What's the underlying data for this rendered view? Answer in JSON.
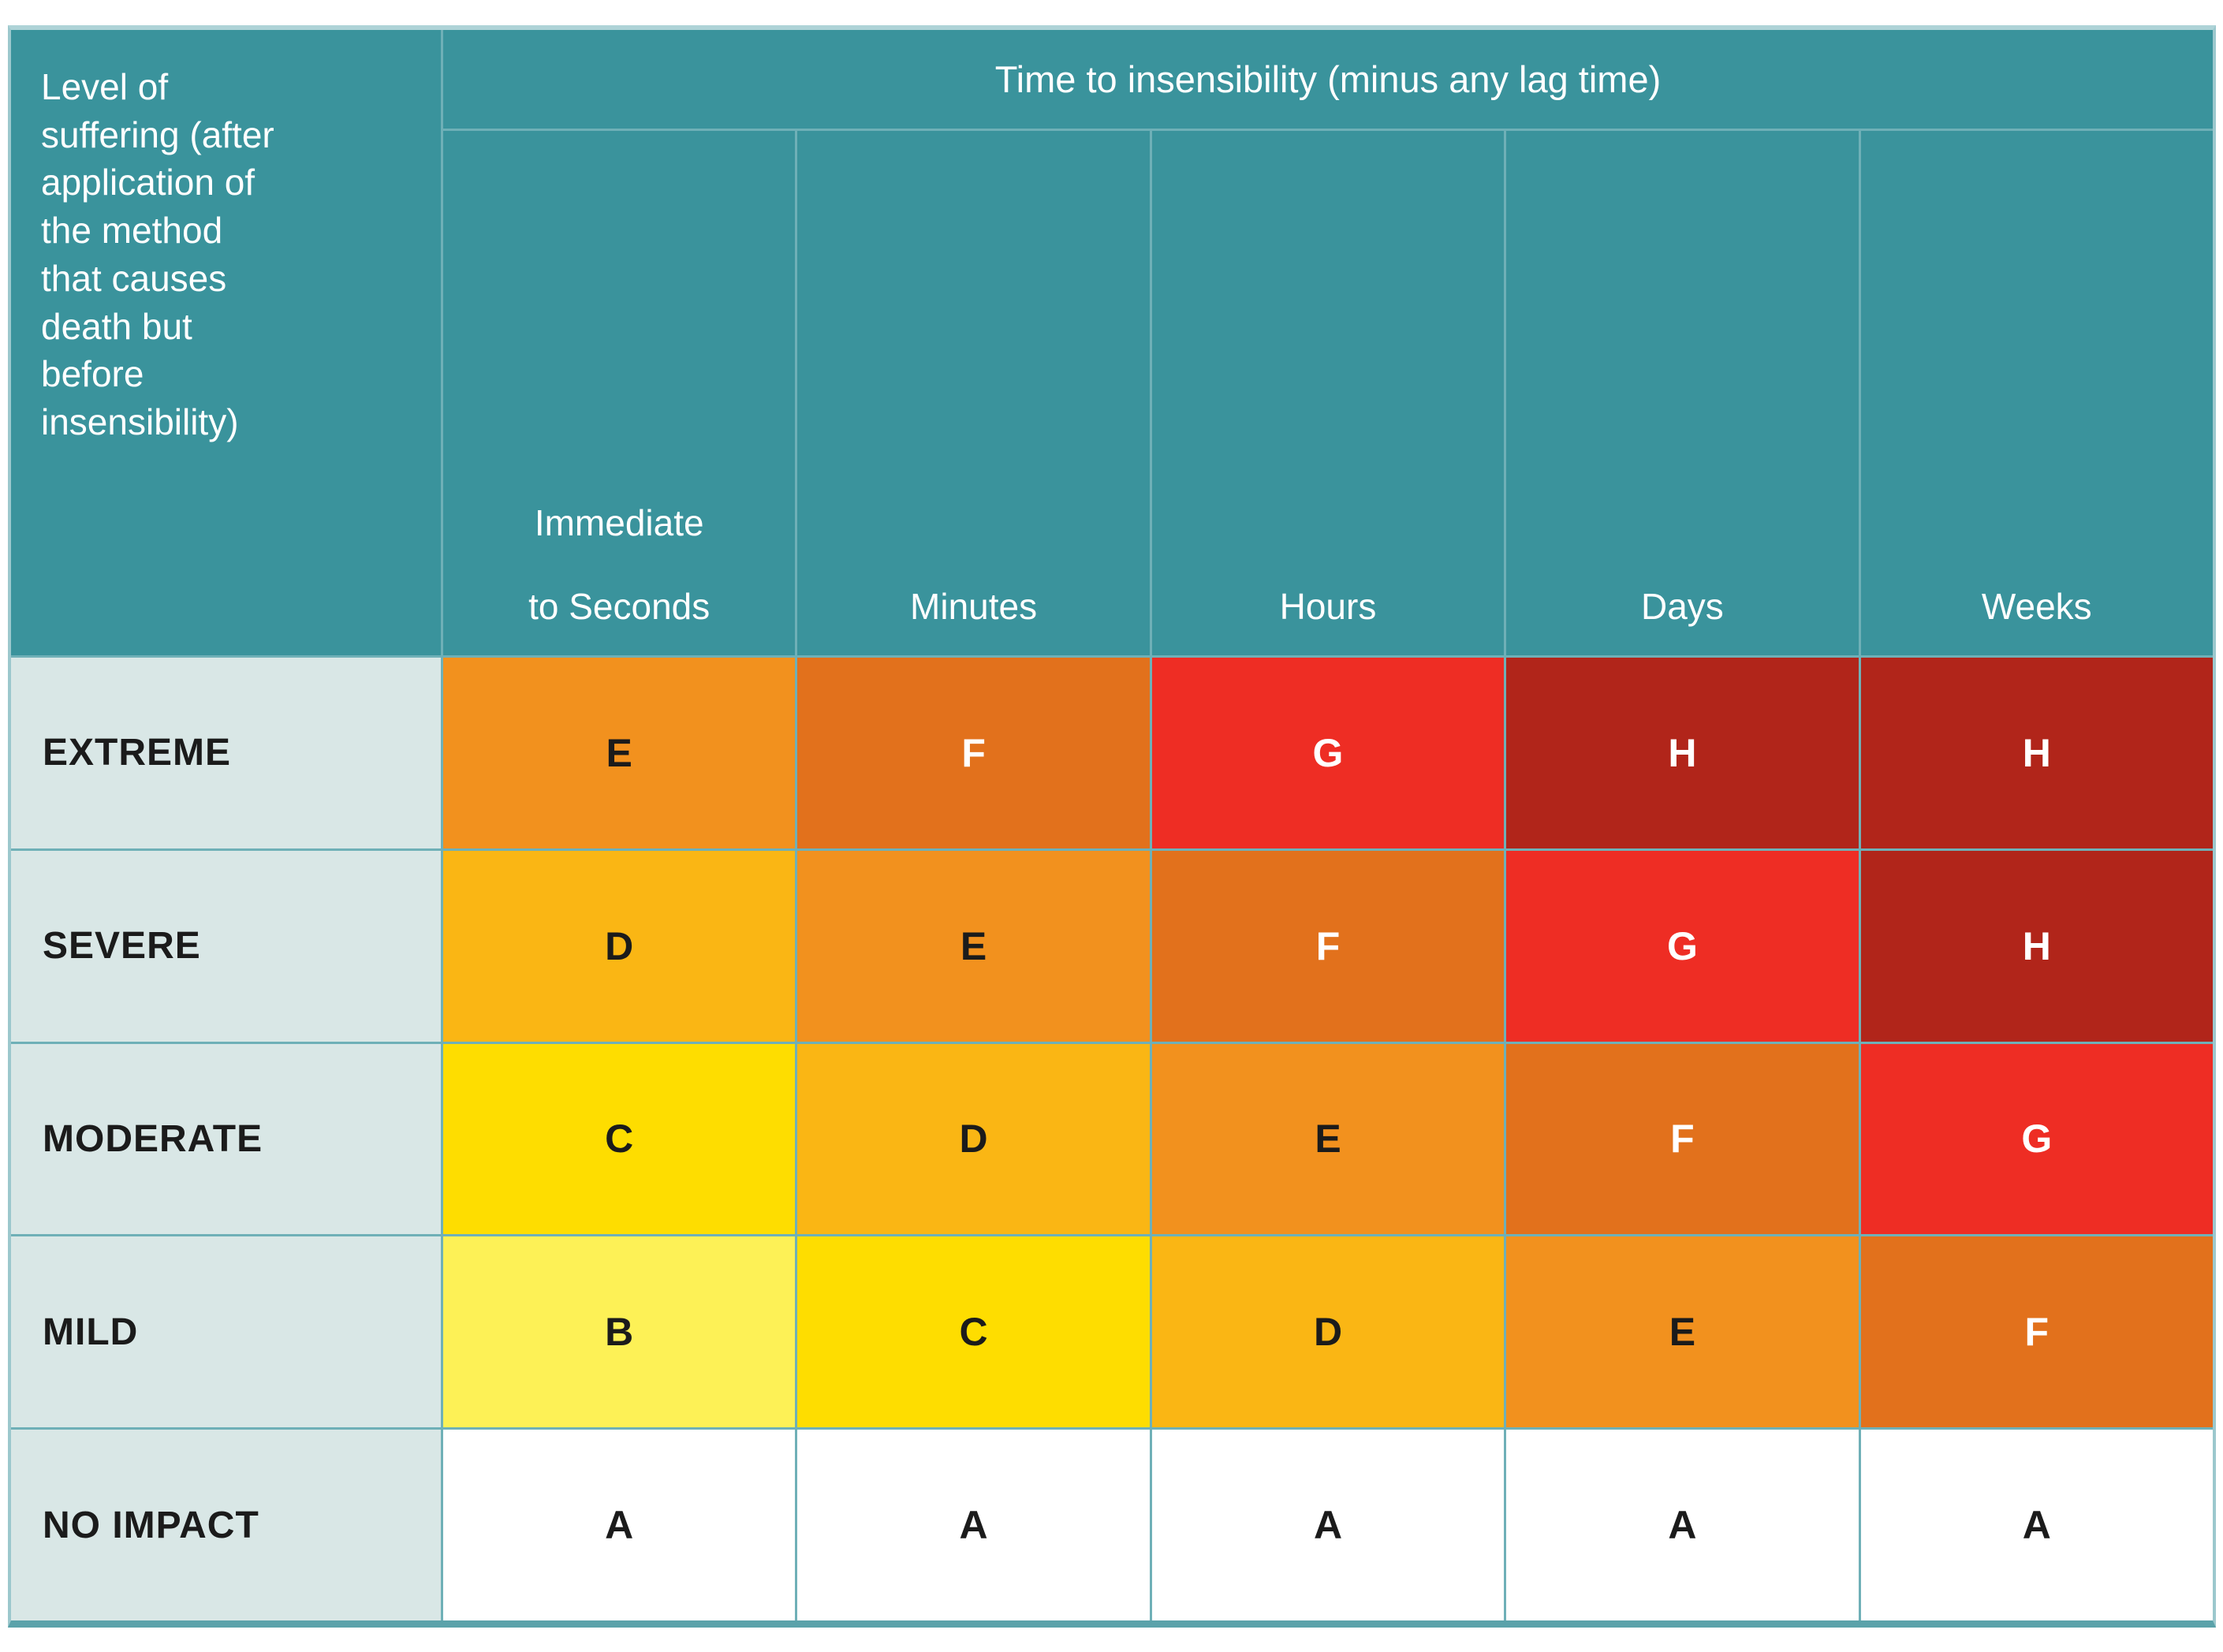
{
  "chart_data": {
    "type": "heatmap",
    "title": "Time to insensibility (minus any lag time)",
    "row_axis_label": "Level of suffering (after application of the method that causes death but before insensibility)",
    "columns": [
      "Immediate to Seconds",
      "Minutes",
      "Hours",
      "Days",
      "Weeks"
    ],
    "rows": [
      "EXTREME",
      "SEVERE",
      "MODERATE",
      "MILD",
      "NO IMPACT"
    ],
    "values": [
      [
        "E",
        "F",
        "G",
        "H",
        "H"
      ],
      [
        "D",
        "E",
        "F",
        "G",
        "H"
      ],
      [
        "C",
        "D",
        "E",
        "F",
        "G"
      ],
      [
        "B",
        "C",
        "D",
        "E",
        "F"
      ],
      [
        "A",
        "A",
        "A",
        "A",
        "A"
      ]
    ],
    "grade_colors": {
      "A": {
        "bg": "#FFFFFF",
        "fg": "#1B1B1B"
      },
      "B": {
        "bg": "#FDF156",
        "fg": "#1B1B1B"
      },
      "C": {
        "bg": "#FEDD00",
        "fg": "#1B1B1B"
      },
      "D": {
        "bg": "#FAB614",
        "fg": "#1B1B1B"
      },
      "E": {
        "bg": "#F2911E",
        "fg": "#1B1B1B"
      },
      "F": {
        "bg": "#E2711C",
        "fg": "#FFFFFF"
      },
      "G": {
        "bg": "#EE2D24",
        "fg": "#FFFFFF"
      },
      "H": {
        "bg": "#B1251A",
        "fg": "#FFFFFF"
      }
    },
    "layout_hints": {
      "grid": "on",
      "header_bg": "#3A939C",
      "row_label_bg": "#D9E7E6",
      "grid_line_color": "#6FB0B7"
    }
  },
  "ui": {
    "corner_header_display": "Level of\nsuffering (after\napplication of\nthe method\nthat causes\ndeath but\nbefore\ninsensibility)",
    "column_headers_display": [
      "Immediate\nto Seconds",
      "Minutes",
      "Hours",
      "Days",
      "Weeks"
    ]
  }
}
